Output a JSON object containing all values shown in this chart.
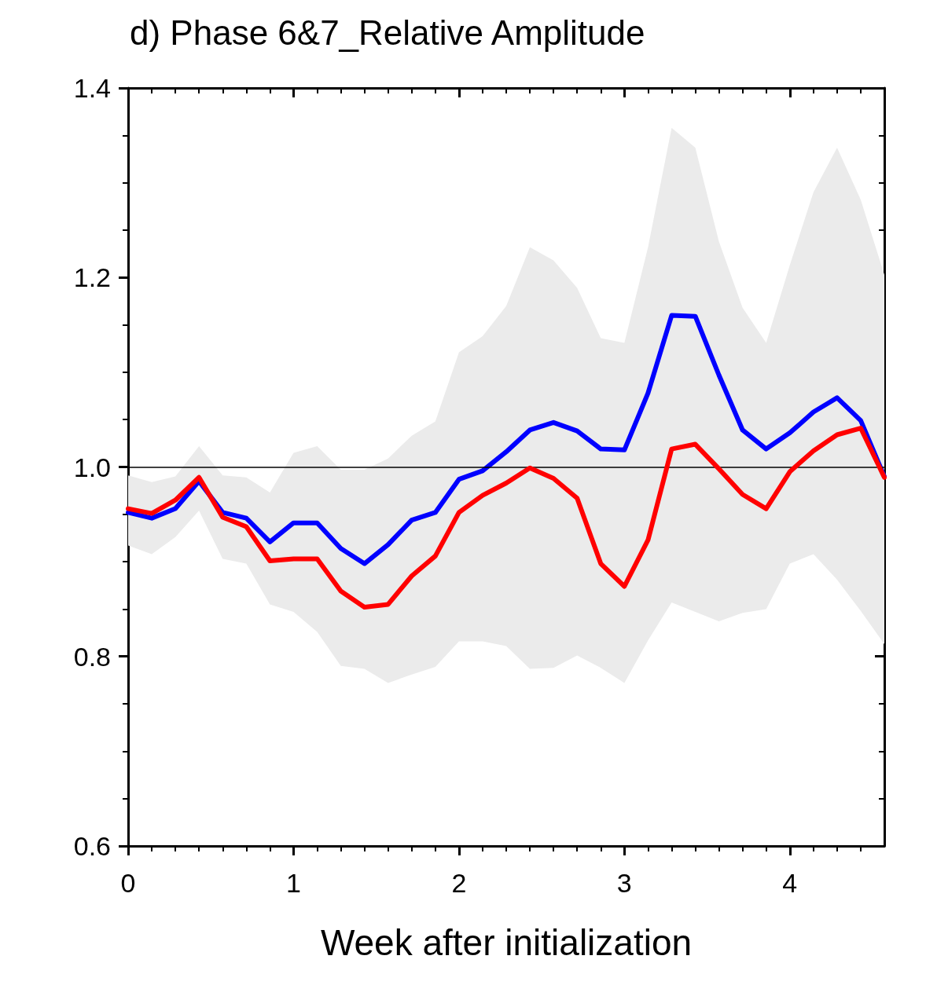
{
  "chart_data": {
    "type": "line",
    "title": "d) Phase 6&7_Relative Amplitude",
    "xlabel": "Week after initialization",
    "x": [
      0,
      0.1429,
      0.2857,
      0.4286,
      0.5714,
      0.7143,
      0.8571,
      1,
      1.1429,
      1.2857,
      1.4286,
      1.5714,
      1.7143,
      1.8571,
      2,
      2.1429,
      2.2857,
      2.4286,
      2.5714,
      2.7143,
      2.8571,
      3,
      3.1429,
      3.2857,
      3.4286,
      3.5714,
      3.7143,
      3.8571,
      4,
      4.1429,
      4.2857,
      4.4286,
      4.5714
    ],
    "series": [
      {
        "color": "#ebebeb",
        "values": [
          null,
          null,
          null,
          null,
          null,
          null,
          null,
          null,
          null,
          null,
          null,
          null,
          null,
          null,
          null,
          null,
          null,
          null,
          null,
          null,
          null,
          null,
          null,
          null,
          null,
          null,
          null,
          null,
          null,
          null,
          null,
          null,
          null
        ],
        "lower": [
          0.917,
          0.908,
          0.926,
          0.954,
          0.903,
          0.898,
          0.855,
          0.847,
          0.826,
          0.79,
          0.787,
          0.772,
          0.781,
          0.789,
          0.816,
          0.816,
          0.811,
          0.787,
          0.788,
          0.801,
          0.788,
          0.772,
          0.817,
          0.857,
          0.847,
          0.837,
          0.846,
          0.85,
          0.898,
          0.908,
          0.881,
          0.848,
          0.813
        ],
        "upper": [
          0.991,
          0.984,
          0.99,
          1.022,
          0.991,
          0.989,
          0.973,
          1.015,
          1.022,
          0.997,
          0.997,
          1.009,
          1.033,
          1.048,
          1.121,
          1.138,
          1.17,
          1.232,
          1.218,
          1.189,
          1.136,
          1.131,
          1.232,
          1.358,
          1.337,
          1.238,
          1.168,
          1.131,
          1.213,
          1.29,
          1.337,
          1.282,
          1.203
        ]
      },
      {
        "color": "#0000ff",
        "values": [
          0.952,
          0.946,
          0.956,
          0.985,
          0.952,
          0.946,
          0.921,
          0.941,
          0.941,
          0.914,
          0.898,
          0.918,
          0.944,
          0.952,
          0.987,
          0.996,
          1.016,
          1.039,
          1.047,
          1.038,
          1.019,
          1.018,
          1.078,
          1.16,
          1.159,
          1.097,
          1.039,
          1.019,
          1.036,
          1.058,
          1.073,
          1.049,
          0.99
        ]
      },
      {
        "color": "#ff0000",
        "values": [
          0.956,
          0.951,
          0.965,
          0.989,
          0.947,
          0.937,
          0.901,
          0.903,
          0.903,
          0.869,
          0.852,
          0.855,
          0.885,
          0.906,
          0.952,
          0.97,
          0.983,
          0.999,
          0.988,
          0.967,
          0.898,
          0.874,
          0.923,
          1.019,
          1.024,
          0.998,
          0.971,
          0.956,
          0.995,
          1.017,
          1.034,
          1.041,
          0.989
        ]
      }
    ],
    "xlim": [
      0,
      4.5714
    ],
    "xticks": [
      0,
      1,
      2,
      3,
      4
    ],
    "ylim": [
      0.6,
      1.4
    ],
    "yticks": [
      {
        "value": 0.6,
        "label": "0.6"
      },
      {
        "value": 0.8,
        "label": "0.8"
      },
      {
        "value": 1,
        "label": "1.0"
      },
      {
        "value": 1.2,
        "label": "1.2"
      },
      {
        "value": 1.4,
        "label": "1.4"
      }
    ],
    "ref_lines": [
      {
        "axis": "y",
        "value": 1,
        "color": "#000000"
      }
    ],
    "marker": "none",
    "line_style": "solid"
  }
}
